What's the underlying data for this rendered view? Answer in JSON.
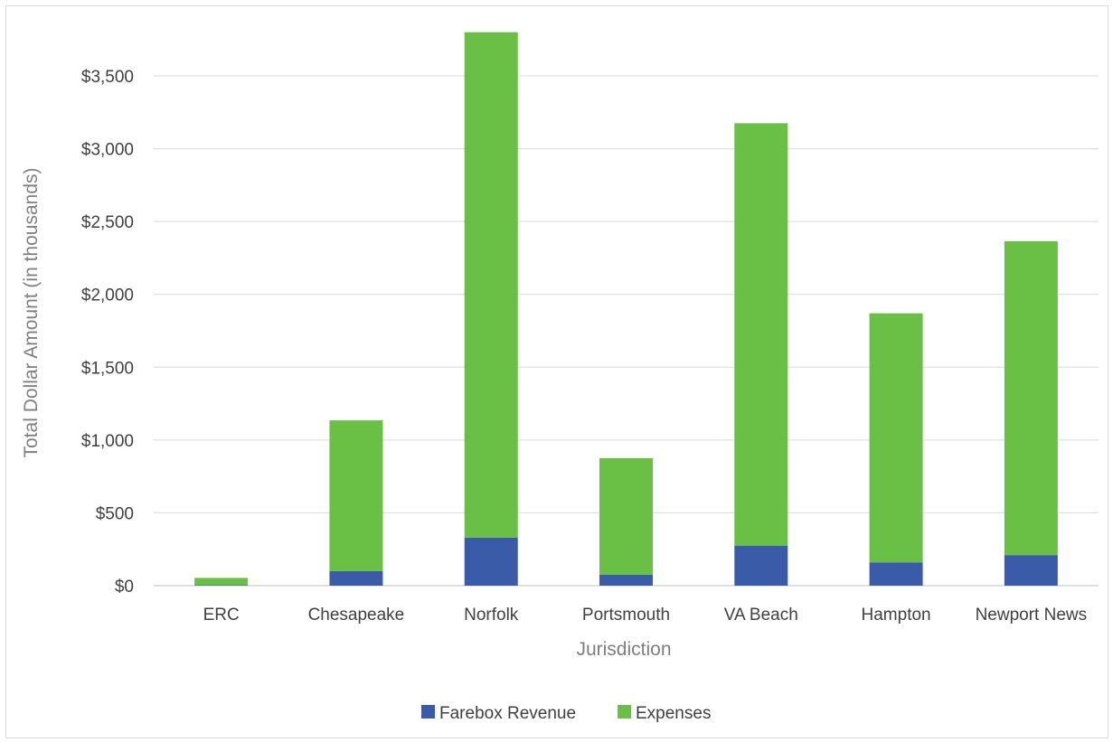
{
  "chart_data": {
    "type": "bar",
    "stacked": true,
    "title": "",
    "xlabel": "Jurisdiction",
    "ylabel": "Total Dollar Amount (in thousands)",
    "categories": [
      "ERC",
      "Chesapeake",
      "Norfolk",
      "Portsmouth",
      "VA Beach",
      "Hampton",
      "Newport News"
    ],
    "series": [
      {
        "name": "Farebox Revenue",
        "color": "#3a5ba8",
        "values": [
          3,
          100,
          330,
          75,
          275,
          160,
          210
        ]
      },
      {
        "name": "Expenses",
        "color": "#6abf45",
        "values": [
          50,
          1035,
          3470,
          800,
          2900,
          1710,
          2155
        ]
      }
    ],
    "ylim": [
      0,
      3800
    ],
    "yticks": [
      0,
      500,
      1000,
      1500,
      2000,
      2500,
      3000,
      3500
    ],
    "ytick_labels": [
      "$0",
      "$500",
      "$1,000",
      "$1,500",
      "$2,000",
      "$2,500",
      "$3,000",
      "$3,500"
    ],
    "grid": true,
    "legend_position": "bottom"
  }
}
